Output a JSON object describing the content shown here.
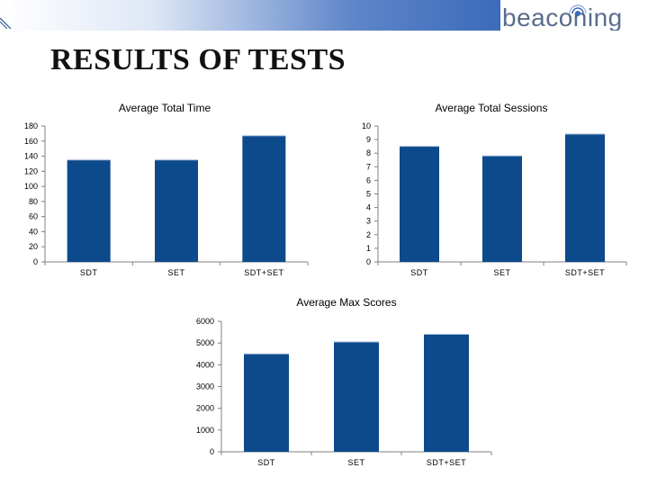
{
  "header": {
    "title": "RESULTS OF TESTS",
    "logo_text": "beaconing",
    "band_color": "#3b6bbb"
  },
  "chart_data": [
    {
      "type": "bar",
      "title": "Average Total Time",
      "categories": [
        "SDT",
        "SET",
        "SDT+SET"
      ],
      "values": [
        135,
        135,
        167
      ],
      "ylim": [
        0,
        180
      ],
      "yticks": [
        0,
        20,
        40,
        60,
        80,
        100,
        120,
        140,
        160,
        180
      ],
      "grid": false,
      "bar_color": "#0d4a8c"
    },
    {
      "type": "bar",
      "title": "Average Total Sessions",
      "categories": [
        "SDT",
        "SET",
        "SDT+SET"
      ],
      "values": [
        8.5,
        7.8,
        9.4
      ],
      "ylim": [
        0,
        10
      ],
      "yticks": [
        0,
        1,
        2,
        3,
        4,
        5,
        6,
        7,
        8,
        9,
        10
      ],
      "grid": false,
      "bar_color": "#0d4a8c"
    },
    {
      "type": "bar",
      "title": "Average Max Scores",
      "categories": [
        "SDT",
        "SET",
        "SDT+SET"
      ],
      "values": [
        4500,
        5050,
        5400
      ],
      "ylim": [
        0,
        6000
      ],
      "yticks": [
        0,
        1000,
        2000,
        3000,
        4000,
        5000,
        6000
      ],
      "grid": false,
      "bar_color": "#0d4a8c"
    }
  ]
}
